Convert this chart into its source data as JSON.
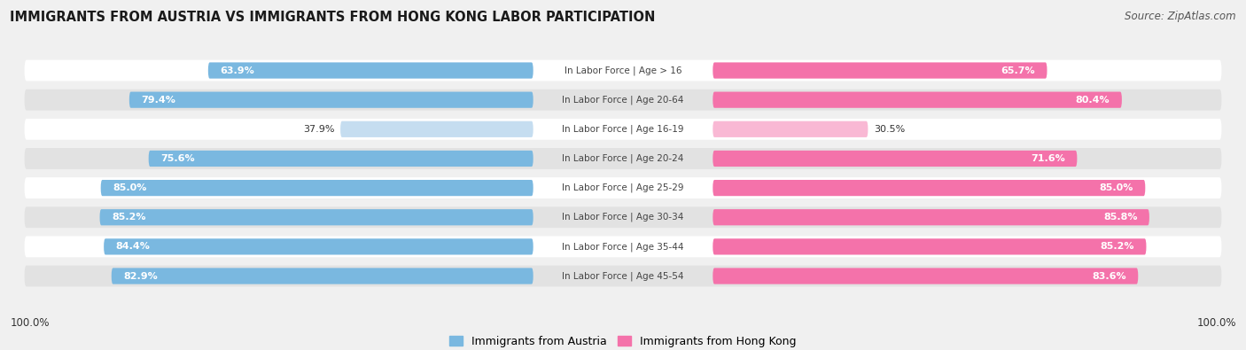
{
  "title": "IMMIGRANTS FROM AUSTRIA VS IMMIGRANTS FROM HONG KONG LABOR PARTICIPATION",
  "source": "Source: ZipAtlas.com",
  "categories": [
    "In Labor Force | Age > 16",
    "In Labor Force | Age 20-64",
    "In Labor Force | Age 16-19",
    "In Labor Force | Age 20-24",
    "In Labor Force | Age 25-29",
    "In Labor Force | Age 30-34",
    "In Labor Force | Age 35-44",
    "In Labor Force | Age 45-54"
  ],
  "austria_values": [
    63.9,
    79.4,
    37.9,
    75.6,
    85.0,
    85.2,
    84.4,
    82.9
  ],
  "hongkong_values": [
    65.7,
    80.4,
    30.5,
    71.6,
    85.0,
    85.8,
    85.2,
    83.6
  ],
  "austria_color": "#7ab8e0",
  "austria_color_light": "#c5ddf0",
  "hongkong_color": "#f472aa",
  "hongkong_color_light": "#f9b8d4",
  "background_color": "#f0f0f0",
  "row_bg_light": "#ffffff",
  "row_bg_dark": "#e2e2e2",
  "legend_austria": "Immigrants from Austria",
  "legend_hongkong": "Immigrants from Hong Kong",
  "label_threshold": 55.0
}
